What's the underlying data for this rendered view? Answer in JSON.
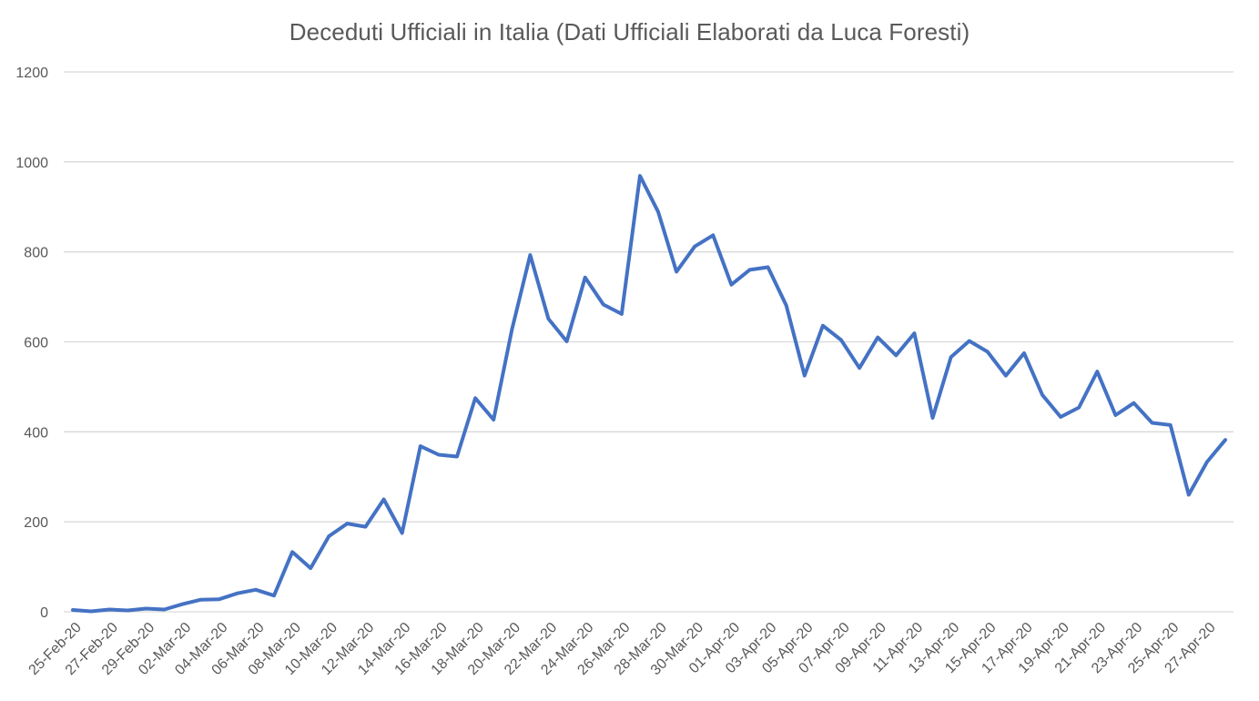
{
  "chart_data": {
    "type": "line",
    "title": "Deceduti Ufficiali in Italia  (Dati Ufficiali Elaborati da Luca Foresti)",
    "xlabel": "",
    "ylabel": "",
    "ylim": [
      0,
      1200
    ],
    "y_ticks": [
      "0",
      "200",
      "400",
      "600",
      "800",
      "1000",
      "1200"
    ],
    "grid": true,
    "legend": "none",
    "x_tick_labels": [
      "25-Feb-20",
      "27-Feb-20",
      "29-Feb-20",
      "02-Mar-20",
      "04-Mar-20",
      "06-Mar-20",
      "08-Mar-20",
      "10-Mar-20",
      "12-Mar-20",
      "14-Mar-20",
      "16-Mar-20",
      "18-Mar-20",
      "20-Mar-20",
      "22-Mar-20",
      "24-Mar-20",
      "26-Mar-20",
      "28-Mar-20",
      "30-Mar-20",
      "01-Apr-20",
      "03-Apr-20",
      "05-Apr-20",
      "07-Apr-20",
      "09-Apr-20",
      "11-Apr-20",
      "13-Apr-20",
      "15-Apr-20",
      "17-Apr-20",
      "19-Apr-20",
      "21-Apr-20",
      "23-Apr-20",
      "25-Apr-20",
      "27-Apr-20"
    ],
    "x": [
      "25-Feb-20",
      "26-Feb-20",
      "27-Feb-20",
      "28-Feb-20",
      "29-Feb-20",
      "01-Mar-20",
      "02-Mar-20",
      "03-Mar-20",
      "04-Mar-20",
      "05-Mar-20",
      "06-Mar-20",
      "07-Mar-20",
      "08-Mar-20",
      "09-Mar-20",
      "10-Mar-20",
      "11-Mar-20",
      "12-Mar-20",
      "13-Mar-20",
      "14-Mar-20",
      "15-Mar-20",
      "16-Mar-20",
      "17-Mar-20",
      "18-Mar-20",
      "19-Mar-20",
      "20-Mar-20",
      "21-Mar-20",
      "22-Mar-20",
      "23-Mar-20",
      "24-Mar-20",
      "25-Mar-20",
      "26-Mar-20",
      "27-Mar-20",
      "28-Mar-20",
      "29-Mar-20",
      "30-Mar-20",
      "31-Mar-20",
      "01-Apr-20",
      "02-Apr-20",
      "03-Apr-20",
      "04-Apr-20",
      "05-Apr-20",
      "06-Apr-20",
      "07-Apr-20",
      "08-Apr-20",
      "09-Apr-20",
      "10-Apr-20",
      "11-Apr-20",
      "12-Apr-20",
      "13-Apr-20",
      "14-Apr-20",
      "15-Apr-20",
      "16-Apr-20",
      "17-Apr-20",
      "18-Apr-20",
      "19-Apr-20",
      "20-Apr-20",
      "21-Apr-20",
      "22-Apr-20",
      "23-Apr-20",
      "24-Apr-20",
      "25-Apr-20",
      "26-Apr-20",
      "27-Apr-20",
      "28-Apr-20"
    ],
    "series": [
      {
        "name": "",
        "color": "#4472c4",
        "values": [
          4,
          1,
          5,
          3,
          7,
          5,
          17,
          27,
          28,
          41,
          49,
          36,
          133,
          97,
          168,
          196,
          189,
          250,
          175,
          368,
          349,
          345,
          475,
          427,
          627,
          793,
          651,
          601,
          743,
          683,
          662,
          969,
          889,
          756,
          812,
          837,
          727,
          760,
          766,
          681,
          525,
          636,
          604,
          542,
          610,
          570,
          619,
          431,
          566,
          602,
          578,
          525,
          575,
          482,
          433,
          454,
          534,
          437,
          464,
          420,
          415,
          260,
          333,
          382
        ]
      }
    ]
  }
}
